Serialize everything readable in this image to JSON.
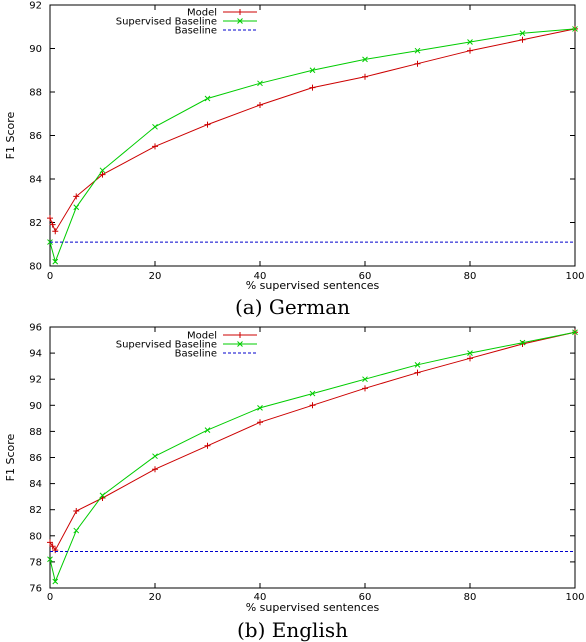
{
  "colors": {
    "model": "#cc0000",
    "supervised": "#00cc00",
    "baseline": "#0000cc"
  },
  "chart_data": [
    {
      "type": "line",
      "caption": "(a) German",
      "xlabel": "% supervised sentences",
      "ylabel": "F1 Score",
      "xlim": [
        0,
        100
      ],
      "ylim": [
        80,
        92
      ],
      "xticks": [
        0,
        20,
        40,
        60,
        80,
        100
      ],
      "xtick_labels": [
        "0",
        "20",
        "40",
        "60",
        "80",
        "100"
      ],
      "yticks": [
        80,
        82,
        84,
        86,
        88,
        90,
        92
      ],
      "ytick_labels": [
        "80",
        "82",
        "84",
        "86",
        "88",
        "90",
        "92"
      ],
      "legend_position": "top-left",
      "series": [
        {
          "name": "Model",
          "color_key": "model",
          "marker": "plus",
          "x": [
            0,
            0.5,
            1,
            5,
            10,
            20,
            30,
            40,
            50,
            60,
            70,
            80,
            90,
            100
          ],
          "y": [
            82.2,
            81.9,
            81.6,
            83.2,
            84.2,
            85.5,
            86.5,
            87.4,
            88.2,
            88.7,
            89.3,
            89.9,
            90.4,
            90.9
          ]
        },
        {
          "name": "Supervised Baseline",
          "color_key": "supervised",
          "marker": "cross",
          "x": [
            0,
            1,
            5,
            10,
            20,
            30,
            40,
            50,
            60,
            70,
            80,
            90,
            100
          ],
          "y": [
            81.1,
            80.2,
            82.7,
            84.4,
            86.4,
            87.7,
            88.4,
            89.0,
            89.5,
            89.9,
            90.3,
            90.7,
            90.9
          ]
        },
        {
          "name": "Baseline",
          "color_key": "baseline",
          "marker": "none",
          "dashed": true,
          "x": [
            0,
            100
          ],
          "y": [
            81.1,
            81.1
          ]
        }
      ]
    },
    {
      "type": "line",
      "caption": "(b) English",
      "xlabel": "% supervised sentences",
      "ylabel": "F1 Score",
      "xlim": [
        0,
        100
      ],
      "ylim": [
        76,
        96
      ],
      "xticks": [
        0,
        20,
        40,
        60,
        80,
        100
      ],
      "xtick_labels": [
        "0",
        "20",
        "40",
        "60",
        "80",
        "100"
      ],
      "yticks": [
        76,
        78,
        80,
        82,
        84,
        86,
        88,
        90,
        92,
        94,
        96
      ],
      "ytick_labels": [
        "76",
        "78",
        "80",
        "82",
        "84",
        "86",
        "88",
        "90",
        "92",
        "94",
        "96"
      ],
      "legend_position": "top-left",
      "series": [
        {
          "name": "Model",
          "color_key": "model",
          "marker": "plus",
          "x": [
            0,
            0.5,
            1,
            5,
            10,
            20,
            30,
            40,
            50,
            60,
            70,
            80,
            90,
            100
          ],
          "y": [
            79.5,
            79.2,
            78.9,
            81.9,
            82.9,
            85.1,
            86.9,
            88.7,
            90.0,
            91.3,
            92.5,
            93.6,
            94.7,
            95.6
          ]
        },
        {
          "name": "Supervised Baseline",
          "color_key": "supervised",
          "marker": "cross",
          "x": [
            0,
            1,
            5,
            10,
            20,
            30,
            40,
            50,
            60,
            70,
            80,
            90,
            100
          ],
          "y": [
            78.2,
            76.5,
            80.4,
            83.1,
            86.1,
            88.1,
            89.8,
            90.9,
            92.0,
            93.1,
            94.0,
            94.8,
            95.6
          ]
        },
        {
          "name": "Baseline",
          "color_key": "baseline",
          "marker": "none",
          "dashed": true,
          "x": [
            0,
            100
          ],
          "y": [
            78.8,
            78.8
          ]
        }
      ]
    }
  ]
}
